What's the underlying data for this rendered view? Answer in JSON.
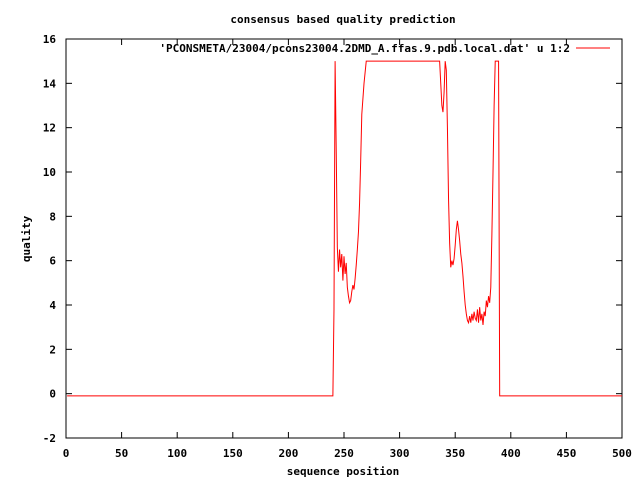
{
  "chart_data": {
    "type": "line",
    "title": "consensus based quality prediction",
    "xlabel": "sequence position",
    "ylabel": "quality",
    "xlim": [
      0,
      500
    ],
    "ylim": [
      -2,
      16
    ],
    "xticks": [
      0,
      50,
      100,
      150,
      200,
      250,
      300,
      350,
      400,
      450,
      500
    ],
    "yticks": [
      -2,
      0,
      2,
      4,
      6,
      8,
      10,
      12,
      14,
      16
    ],
    "grid": false,
    "legend_position": "top-right",
    "series": [
      {
        "name": "'PCONSMETA/23004/pcons23004.2DMD_A.ffas.9.pdb.local.dat' u 1:2",
        "color": "#ff0000",
        "points": [
          [
            1,
            -0.1
          ],
          [
            240,
            -0.1
          ],
          [
            241,
            3.8
          ],
          [
            242,
            15.0
          ],
          [
            243,
            11.0
          ],
          [
            244,
            6.6
          ],
          [
            245,
            5.5
          ],
          [
            246,
            6.5
          ],
          [
            247,
            5.7
          ],
          [
            248,
            6.3
          ],
          [
            249,
            5.1
          ],
          [
            250,
            6.2
          ],
          [
            251,
            5.4
          ],
          [
            252,
            5.9
          ],
          [
            253,
            4.8
          ],
          [
            254,
            4.4
          ],
          [
            255,
            4.1
          ],
          [
            256,
            4.2
          ],
          [
            257,
            4.6
          ],
          [
            258,
            4.9
          ],
          [
            259,
            4.7
          ],
          [
            260,
            5.2
          ],
          [
            261,
            5.8
          ],
          [
            262,
            6.5
          ],
          [
            263,
            7.3
          ],
          [
            264,
            8.6
          ],
          [
            265,
            10.5
          ],
          [
            266,
            12.6
          ],
          [
            268,
            14.0
          ],
          [
            270,
            15.0
          ],
          [
            300,
            15.0
          ],
          [
            336,
            15.0
          ],
          [
            337,
            14.0
          ],
          [
            338,
            13.0
          ],
          [
            339,
            12.7
          ],
          [
            340,
            13.6
          ],
          [
            341,
            15.0
          ],
          [
            342,
            14.6
          ],
          [
            343,
            12.0
          ],
          [
            344,
            8.8
          ],
          [
            345,
            6.8
          ],
          [
            346,
            5.7
          ],
          [
            347,
            6.0
          ],
          [
            348,
            5.8
          ],
          [
            349,
            6.1
          ],
          [
            350,
            6.7
          ],
          [
            351,
            7.4
          ],
          [
            352,
            7.8
          ],
          [
            353,
            7.4
          ],
          [
            354,
            6.9
          ],
          [
            355,
            6.3
          ],
          [
            356,
            5.9
          ],
          [
            357,
            5.3
          ],
          [
            358,
            4.6
          ],
          [
            359,
            4.0
          ],
          [
            360,
            3.6
          ],
          [
            361,
            3.3
          ],
          [
            362,
            3.2
          ],
          [
            363,
            3.5
          ],
          [
            364,
            3.2
          ],
          [
            365,
            3.6
          ],
          [
            366,
            3.3
          ],
          [
            367,
            3.7
          ],
          [
            368,
            3.4
          ],
          [
            369,
            3.3
          ],
          [
            370,
            3.8
          ],
          [
            371,
            3.2
          ],
          [
            372,
            3.9
          ],
          [
            373,
            3.3
          ],
          [
            374,
            3.6
          ],
          [
            375,
            3.1
          ],
          [
            376,
            3.7
          ],
          [
            377,
            3.5
          ],
          [
            378,
            4.2
          ],
          [
            379,
            3.9
          ],
          [
            380,
            4.4
          ],
          [
            381,
            4.1
          ],
          [
            382,
            4.8
          ],
          [
            383,
            7.2
          ],
          [
            384,
            10.0
          ],
          [
            385,
            13.0
          ],
          [
            386,
            15.0
          ],
          [
            389,
            15.0
          ],
          [
            390,
            -0.1
          ],
          [
            500,
            -0.1
          ]
        ]
      }
    ]
  }
}
